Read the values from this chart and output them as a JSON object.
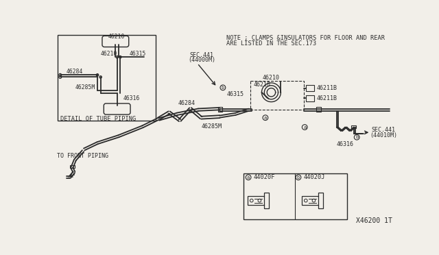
{
  "bg_color": "#f2efe9",
  "line_color": "#2a2a2a",
  "text_color": "#2a2a2a",
  "diagram_id": "X46200 1T",
  "note_line1": "NOTE ; CLAMPS &INSULATORS FOR FLOOR AND REAR",
  "note_line2": "ARE LISTED IN THE SEC.173"
}
